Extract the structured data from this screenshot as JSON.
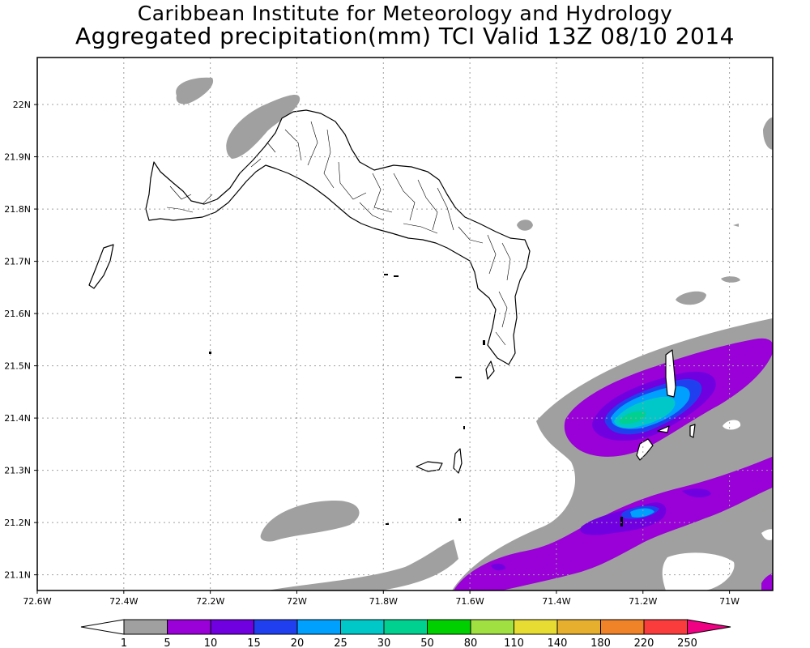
{
  "title": {
    "line1": "Caribbean Institute for Meteorology and Hydrology",
    "line2": "Aggregated precipitation(mm) TCI Valid 13Z 08/10 2014"
  },
  "map": {
    "lon_range": [
      -72.6,
      -70.9
    ],
    "lat_range": [
      21.07,
      22.09
    ],
    "lon_ticks": [
      {
        "value": -72.6,
        "label": "72.6W"
      },
      {
        "value": -72.4,
        "label": "72.4W"
      },
      {
        "value": -72.2,
        "label": "72.2W"
      },
      {
        "value": -72.0,
        "label": "72W"
      },
      {
        "value": -71.8,
        "label": "71.8W"
      },
      {
        "value": -71.6,
        "label": "71.6W"
      },
      {
        "value": -71.4,
        "label": "71.4W"
      },
      {
        "value": -71.2,
        "label": "71.2W"
      },
      {
        "value": -71.0,
        "label": "71W"
      }
    ],
    "lat_ticks": [
      {
        "value": 21.1,
        "label": "21.1N"
      },
      {
        "value": 21.2,
        "label": "21.2N"
      },
      {
        "value": 21.3,
        "label": "21.3N"
      },
      {
        "value": 21.4,
        "label": "21.4N"
      },
      {
        "value": 21.5,
        "label": "21.5N"
      },
      {
        "value": 21.6,
        "label": "21.6N"
      },
      {
        "value": 21.7,
        "label": "21.7N"
      },
      {
        "value": 21.8,
        "label": "21.8N"
      },
      {
        "value": 21.9,
        "label": "21.9N"
      },
      {
        "value": 22.0,
        "label": "22N"
      }
    ],
    "grid": true
  },
  "colorbar": {
    "levels": [
      "1",
      "5",
      "10",
      "15",
      "20",
      "25",
      "30",
      "50",
      "80",
      "110",
      "140",
      "180",
      "220",
      "250"
    ],
    "colors": [
      "#a0a0a0",
      "#9a00d8",
      "#7000e0",
      "#2040f0",
      "#00a0ff",
      "#00c8c8",
      "#00d090",
      "#00d000",
      "#a0e040",
      "#e6dc32",
      "#e6af2d",
      "#f08228",
      "#fa3c3c",
      "#f00082"
    ],
    "under_color": "#ffffff"
  }
}
